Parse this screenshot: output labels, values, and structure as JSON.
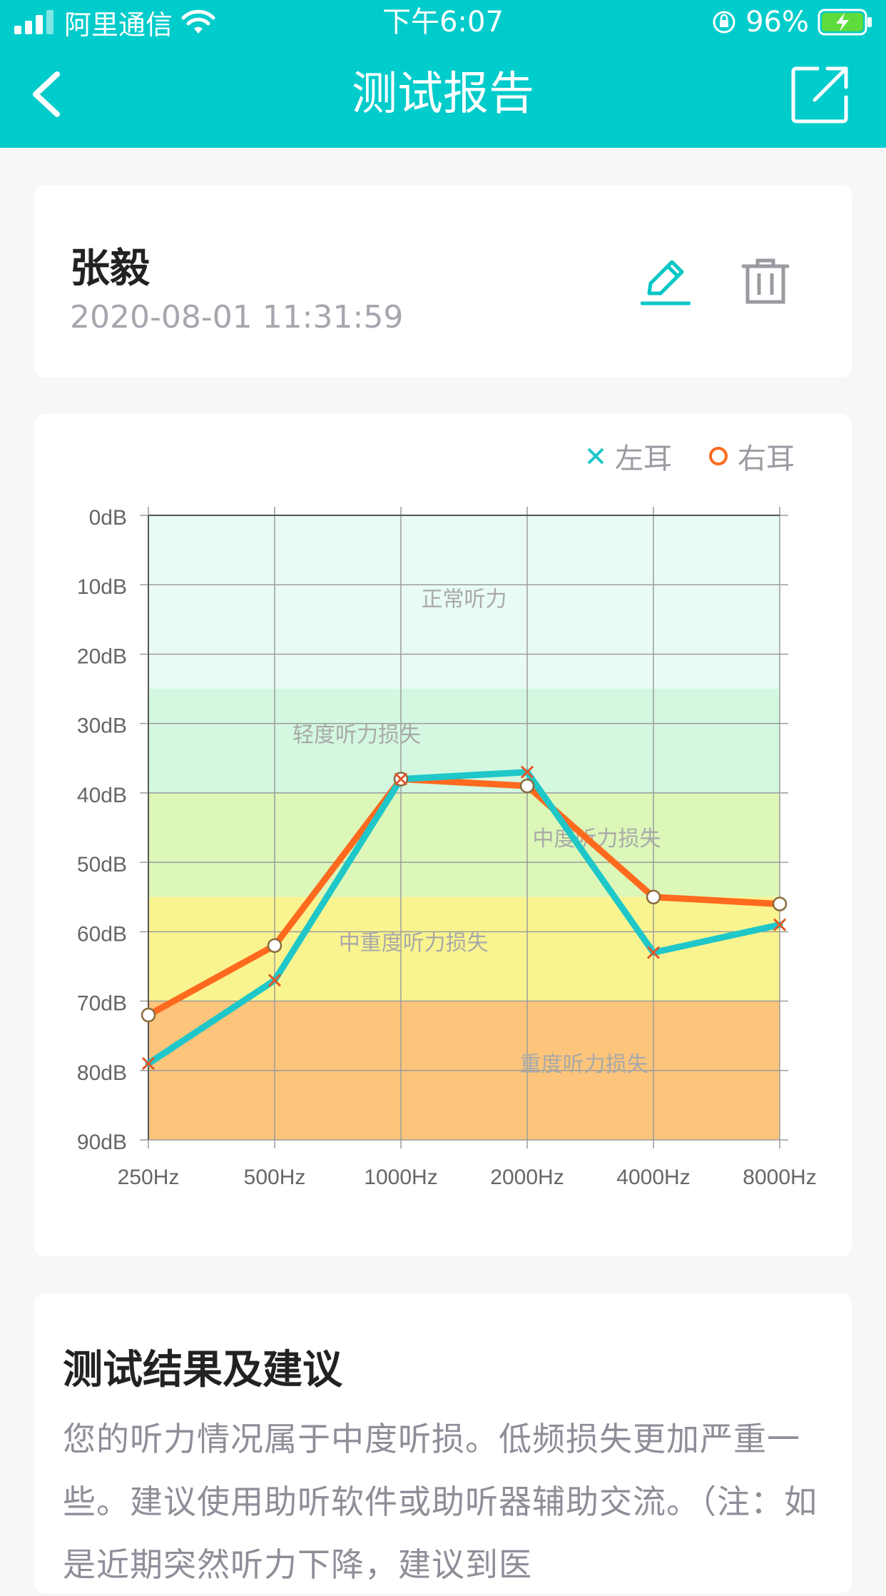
{
  "status_bar": {
    "carrier": "阿里通信",
    "time": "下午6:07",
    "battery": "96%"
  },
  "nav": {
    "title": "测试报告"
  },
  "user": {
    "name": "张毅",
    "datetime": "2020-08-01 11:31:59"
  },
  "legend": {
    "left_ear": "左耳",
    "right_ear": "右耳"
  },
  "chart_data": {
    "type": "line",
    "categories": [
      "250Hz",
      "500Hz",
      "1000Hz",
      "2000Hz",
      "4000Hz",
      "8000Hz"
    ],
    "y_ticks": [
      "0dB",
      "10dB",
      "20dB",
      "30dB",
      "40dB",
      "50dB",
      "60dB",
      "70dB",
      "80dB",
      "90dB"
    ],
    "ylim": [
      0,
      90
    ],
    "y_inverted": true,
    "grid": true,
    "legend_position": "top-right",
    "series": [
      {
        "name": "左耳",
        "marker": "x",
        "color": "#1fc7c9",
        "values": [
          79,
          67,
          38,
          37,
          63,
          59
        ]
      },
      {
        "name": "右耳",
        "marker": "o",
        "color": "#ff6a1f",
        "values": [
          72,
          62,
          38,
          39,
          55,
          56
        ]
      }
    ],
    "bands": [
      {
        "label": "正常听力",
        "from": 0,
        "to": 25,
        "color": "#e9fbf6"
      },
      {
        "label": "轻度听力损失",
        "from": 25,
        "to": 40,
        "color": "#d3f8df"
      },
      {
        "label": "中度听力损失",
        "from": 40,
        "to": 55,
        "color": "#dcf7b8"
      },
      {
        "label": "中重度听力损失",
        "from": 55,
        "to": 70,
        "color": "#f9f48f"
      },
      {
        "label": "重度听力损失",
        "from": 70,
        "to": 90,
        "color": "#fcc57b"
      }
    ]
  },
  "advice": {
    "title": "测试结果及建议",
    "body": "您的听力情况属于中度听损。低频损失更加严重一些。建议使用助听软件或助听器辅助交流。（注：如是近期突然听力下降，建议到医"
  }
}
